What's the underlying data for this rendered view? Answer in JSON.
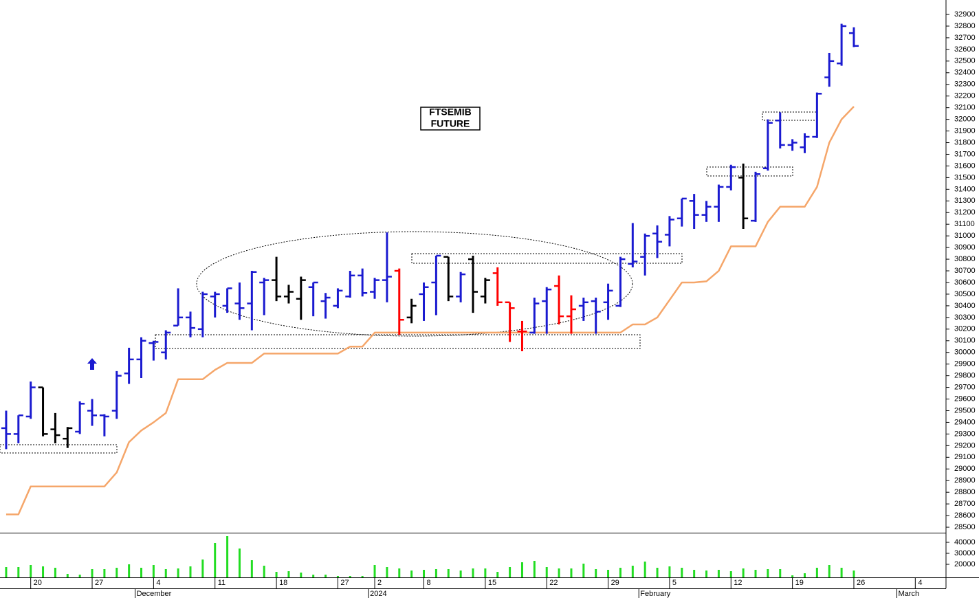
{
  "chart_data": {
    "type": "ohlc",
    "title_lines": [
      "FTSEMIB",
      "FUTURE"
    ],
    "categories": [
      null,
      null,
      "20",
      null,
      null,
      null,
      null,
      "27",
      null,
      null,
      null,
      null,
      "4",
      null,
      null,
      null,
      null,
      "11",
      null,
      null,
      null,
      null,
      "18",
      null,
      null,
      null,
      null,
      "27",
      null,
      null,
      "2",
      null,
      null,
      null,
      "8",
      null,
      null,
      null,
      null,
      "15",
      null,
      null,
      null,
      null,
      "22",
      null,
      null,
      null,
      null,
      "29",
      null,
      null,
      null,
      null,
      "5",
      null,
      null,
      null,
      null,
      "12",
      null,
      null,
      null,
      null,
      "19",
      null,
      null,
      null,
      null,
      "26",
      null,
      null,
      null,
      null,
      "4",
      null,
      null
    ],
    "months": [
      {
        "label": "December",
        "index": 11
      },
      {
        "label": "2024",
        "index": 30
      },
      {
        "label": "February",
        "index": 52
      },
      {
        "label": "March",
        "index": 73
      }
    ],
    "open": [
      29350,
      29300,
      29450,
      29700,
      29340,
      29260,
      29320,
      29500,
      29460,
      29500,
      29820,
      29940,
      30080,
      30000,
      30230,
      30300,
      30200,
      30480,
      30400,
      30420,
      30420,
      30600,
      30620,
      30480,
      30460,
      30560,
      30440,
      30400,
      30480,
      30660,
      30520,
      30620,
      30700,
      30300,
      30500,
      30600,
      30820,
      30480,
      30800,
      30480,
      30680,
      30430,
      30180,
      30170,
      30440,
      30570,
      30310,
      30400,
      30440,
      30430,
      30400,
      30760,
      30820,
      31020,
      31010,
      31150,
      31300,
      31180,
      31250,
      31420,
      31500,
      31130,
      31580,
      31990,
      31780,
      31760,
      31850,
      32360,
      32480,
      32740,
      null,
      null,
      null,
      null,
      null,
      null,
      null
    ],
    "high": [
      29500,
      29460,
      29750,
      29700,
      29480,
      29360,
      29580,
      29600,
      29470,
      29840,
      30040,
      30130,
      30100,
      30190,
      30550,
      30350,
      30520,
      30520,
      30550,
      30600,
      30700,
      30640,
      30820,
      30580,
      30650,
      30600,
      30510,
      30550,
      30700,
      30720,
      30640,
      31030,
      30720,
      30460,
      30600,
      30830,
      30820,
      30690,
      30830,
      30640,
      30730,
      30430,
      30270,
      30470,
      30560,
      30660,
      30490,
      30470,
      30470,
      30590,
      30820,
      31110,
      31020,
      31090,
      31170,
      31320,
      31360,
      31300,
      31440,
      31610,
      31620,
      31550,
      32000,
      32060,
      31830,
      31880,
      32230,
      32570,
      32820,
      32790,
      null,
      null,
      null,
      null,
      null,
      null,
      null
    ],
    "low": [
      29170,
      29220,
      29430,
      29280,
      29220,
      29180,
      29300,
      29370,
      29280,
      29430,
      29730,
      29780,
      29930,
      29940,
      30230,
      30130,
      30130,
      30300,
      30340,
      30280,
      30190,
      30320,
      30440,
      30420,
      30280,
      30310,
      30290,
      30380,
      30470,
      30480,
      30460,
      30430,
      30150,
      30250,
      30270,
      30320,
      30440,
      30430,
      30340,
      30420,
      30400,
      30090,
      30010,
      30160,
      30160,
      30240,
      30160,
      30270,
      30160,
      30280,
      30390,
      30730,
      30660,
      30810,
      30910,
      31080,
      31060,
      31120,
      31120,
      31390,
      31060,
      31120,
      31560,
      31750,
      31730,
      31710,
      31840,
      32280,
      32460,
      32620,
      null,
      null,
      null,
      null,
      null,
      null,
      null
    ],
    "close": [
      29300,
      29460,
      29700,
      29300,
      29290,
      29350,
      29560,
      29460,
      29450,
      29800,
      29940,
      30100,
      30090,
      30170,
      30300,
      30210,
      30500,
      30500,
      30550,
      30380,
      30690,
      30620,
      30480,
      30520,
      30620,
      30600,
      30470,
      30530,
      30660,
      30510,
      30620,
      30650,
      30280,
      30400,
      30560,
      30830,
      30480,
      30670,
      30520,
      30620,
      30430,
      30380,
      30180,
      30420,
      30540,
      30310,
      30370,
      30430,
      30350,
      30530,
      30800,
      30780,
      31000,
      30950,
      31140,
      31320,
      31180,
      31250,
      31420,
      31590,
      31150,
      31530,
      31970,
      31780,
      31800,
      31850,
      32220,
      32500,
      32800,
      32630,
      null,
      null,
      null,
      null,
      null,
      null,
      null
    ],
    "bar_colors": [
      "#1a1ad0",
      "#1a1ad0",
      "#1a1ad0",
      "#000000",
      "#000000",
      "#000000",
      "#1a1ad0",
      "#1a1ad0",
      "#1a1ad0",
      "#1a1ad0",
      "#1a1ad0",
      "#1a1ad0",
      "#1a1ad0",
      "#1a1ad0",
      "#1a1ad0",
      "#1a1ad0",
      "#1a1ad0",
      "#1a1ad0",
      "#1a1ad0",
      "#1a1ad0",
      "#1a1ad0",
      "#1a1ad0",
      "#000000",
      "#000000",
      "#000000",
      "#1a1ad0",
      "#1a1ad0",
      "#1a1ad0",
      "#1a1ad0",
      "#1a1ad0",
      "#1a1ad0",
      "#1a1ad0",
      "#ff0000",
      "#000000",
      "#1a1ad0",
      "#1a1ad0",
      "#000000",
      "#1a1ad0",
      "#000000",
      "#000000",
      "#ff0000",
      "#ff0000",
      "#ff0000",
      "#1a1ad0",
      "#1a1ad0",
      "#ff0000",
      "#ff0000",
      "#1a1ad0",
      "#1a1ad0",
      "#1a1ad0",
      "#1a1ad0",
      "#1a1ad0",
      "#1a1ad0",
      "#1a1ad0",
      "#1a1ad0",
      "#1a1ad0",
      "#1a1ad0",
      "#1a1ad0",
      "#1a1ad0",
      "#1a1ad0",
      "#000000",
      "#1a1ad0",
      "#1a1ad0",
      "#1a1ad0",
      "#1a1ad0",
      "#1a1ad0",
      "#1a1ad0",
      "#1a1ad0",
      "#1a1ad0",
      "#1a1ad0",
      null,
      null,
      null,
      null,
      null,
      null,
      null
    ],
    "series": [
      {
        "color": "#f5a66a",
        "values": [
          28610,
          28610,
          28850,
          28850,
          28850,
          28850,
          28850,
          28850,
          28850,
          28970,
          29230,
          29330,
          29400,
          29480,
          29770,
          29770,
          29770,
          29850,
          29910,
          29910,
          29910,
          29990,
          29990,
          29990,
          29990,
          29990,
          29990,
          29990,
          30050,
          30050,
          30170,
          30170,
          30170,
          30170,
          30170,
          30170,
          30170,
          30170,
          30170,
          30170,
          30170,
          30170,
          30170,
          30170,
          30170,
          30170,
          30170,
          30170,
          30170,
          30170,
          30170,
          30240,
          30240,
          30300,
          30450,
          30600,
          30600,
          30610,
          30700,
          30910,
          30910,
          30910,
          31120,
          31250,
          31250,
          31250,
          31420,
          31800,
          32000,
          32110,
          null,
          null,
          null,
          null,
          null,
          null,
          null
        ]
      }
    ],
    "ylim": [
      28453,
      33024
    ],
    "yticks": [
      28500,
      28600,
      28700,
      28800,
      28900,
      29000,
      29100,
      29200,
      29300,
      29400,
      29500,
      29600,
      29700,
      29800,
      29900,
      30000,
      30100,
      30200,
      30300,
      30400,
      30500,
      30600,
      30700,
      30800,
      30900,
      31000,
      31100,
      31200,
      31300,
      31400,
      31500,
      31600,
      31700,
      31800,
      31900,
      32000,
      32100,
      32200,
      32300,
      32400,
      32500,
      32600,
      32700,
      32800,
      32900
    ],
    "volume": {
      "type": "bar",
      "color": "#22dd22",
      "values": [
        17500,
        17500,
        19375,
        18125,
        16875,
        11250,
        10625,
        15625,
        15625,
        16875,
        20000,
        16875,
        19375,
        15625,
        16250,
        18125,
        24375,
        39375,
        45625,
        34375,
        23750,
        18750,
        13125,
        13750,
        12500,
        10625,
        10625,
        9375,
        9375,
        9375,
        19375,
        17500,
        16250,
        14375,
        15000,
        15625,
        15625,
        14375,
        16250,
        16250,
        13125,
        17500,
        21875,
        23125,
        17500,
        16250,
        16250,
        20625,
        15625,
        15000,
        16875,
        18750,
        22500,
        16875,
        18125,
        16875,
        15000,
        14375,
        15000,
        13750,
        16250,
        15000,
        15625,
        15625,
        10000,
        11875,
        16875,
        19375,
        16875,
        14375,
        null,
        null,
        null,
        null,
        null,
        null,
        null
      ],
      "ylim": [
        8125,
        47500
      ],
      "yticks": [
        20000,
        30000,
        40000
      ]
    }
  }
}
